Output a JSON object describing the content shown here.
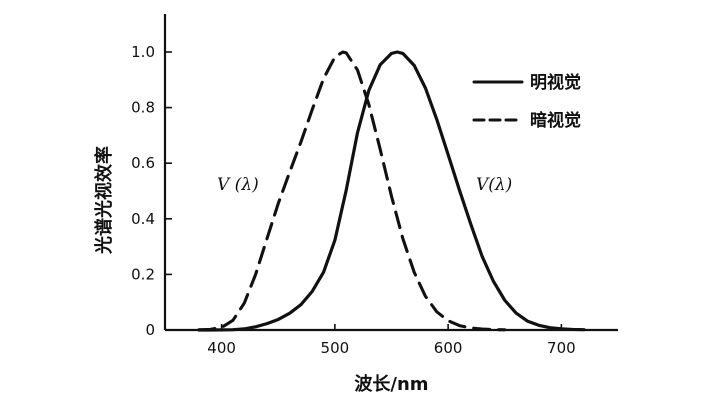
{
  "chart_data": {
    "type": "line",
    "xlabel": "波长/nm",
    "ylabel": "光谱光视效率",
    "xlim": [
      350,
      750
    ],
    "ylim": [
      0,
      1.0
    ],
    "x_ticks": [
      400,
      500,
      600,
      700
    ],
    "y_ticks": [
      0,
      0.2,
      0.4,
      0.6,
      0.8,
      1.0
    ],
    "x_tick_labels": [
      "400",
      "500",
      "600",
      "700"
    ],
    "y_tick_labels": [
      "0",
      "0.2",
      "0.4",
      "0.6",
      "0.8",
      "1.0"
    ],
    "grid": false,
    "legend_position": "top-right",
    "series": [
      {
        "name": "明视觉",
        "style": "solid",
        "color": "#111111",
        "x": [
          380,
          390,
          400,
          410,
          420,
          430,
          440,
          450,
          460,
          470,
          480,
          490,
          500,
          510,
          520,
          530,
          540,
          550,
          555,
          560,
          570,
          580,
          590,
          600,
          610,
          620,
          630,
          640,
          650,
          660,
          670,
          680,
          690,
          700,
          710,
          720
        ],
        "y": [
          4e-05,
          0.00012,
          0.0004,
          0.0012,
          0.004,
          0.0116,
          0.023,
          0.038,
          0.06,
          0.091,
          0.139,
          0.208,
          0.323,
          0.503,
          0.71,
          0.862,
          0.954,
          0.995,
          1.0,
          0.995,
          0.952,
          0.87,
          0.757,
          0.631,
          0.503,
          0.381,
          0.265,
          0.175,
          0.107,
          0.061,
          0.032,
          0.017,
          0.0082,
          0.0041,
          0.0021,
          0.00105
        ]
      },
      {
        "name": "暗视觉",
        "style": "dashed",
        "color": "#111111",
        "x": [
          380,
          390,
          400,
          410,
          420,
          430,
          440,
          450,
          460,
          470,
          480,
          490,
          500,
          507,
          510,
          520,
          530,
          540,
          550,
          560,
          570,
          580,
          590,
          600,
          610,
          620,
          630,
          640,
          650
        ],
        "y": [
          0.0006,
          0.0022,
          0.0093,
          0.0348,
          0.0966,
          0.1998,
          0.3281,
          0.455,
          0.567,
          0.676,
          0.793,
          0.904,
          0.982,
          1.0,
          0.997,
          0.935,
          0.811,
          0.65,
          0.481,
          0.329,
          0.208,
          0.121,
          0.0655,
          0.0332,
          0.0159,
          0.0074,
          0.0033,
          0.0015,
          0.0007
        ]
      }
    ],
    "annotations": [
      {
        "text": "V (λ)",
        "x": 438,
        "y": 0.55
      },
      {
        "text": "V(λ)",
        "x": 608,
        "y": 0.55
      }
    ]
  }
}
